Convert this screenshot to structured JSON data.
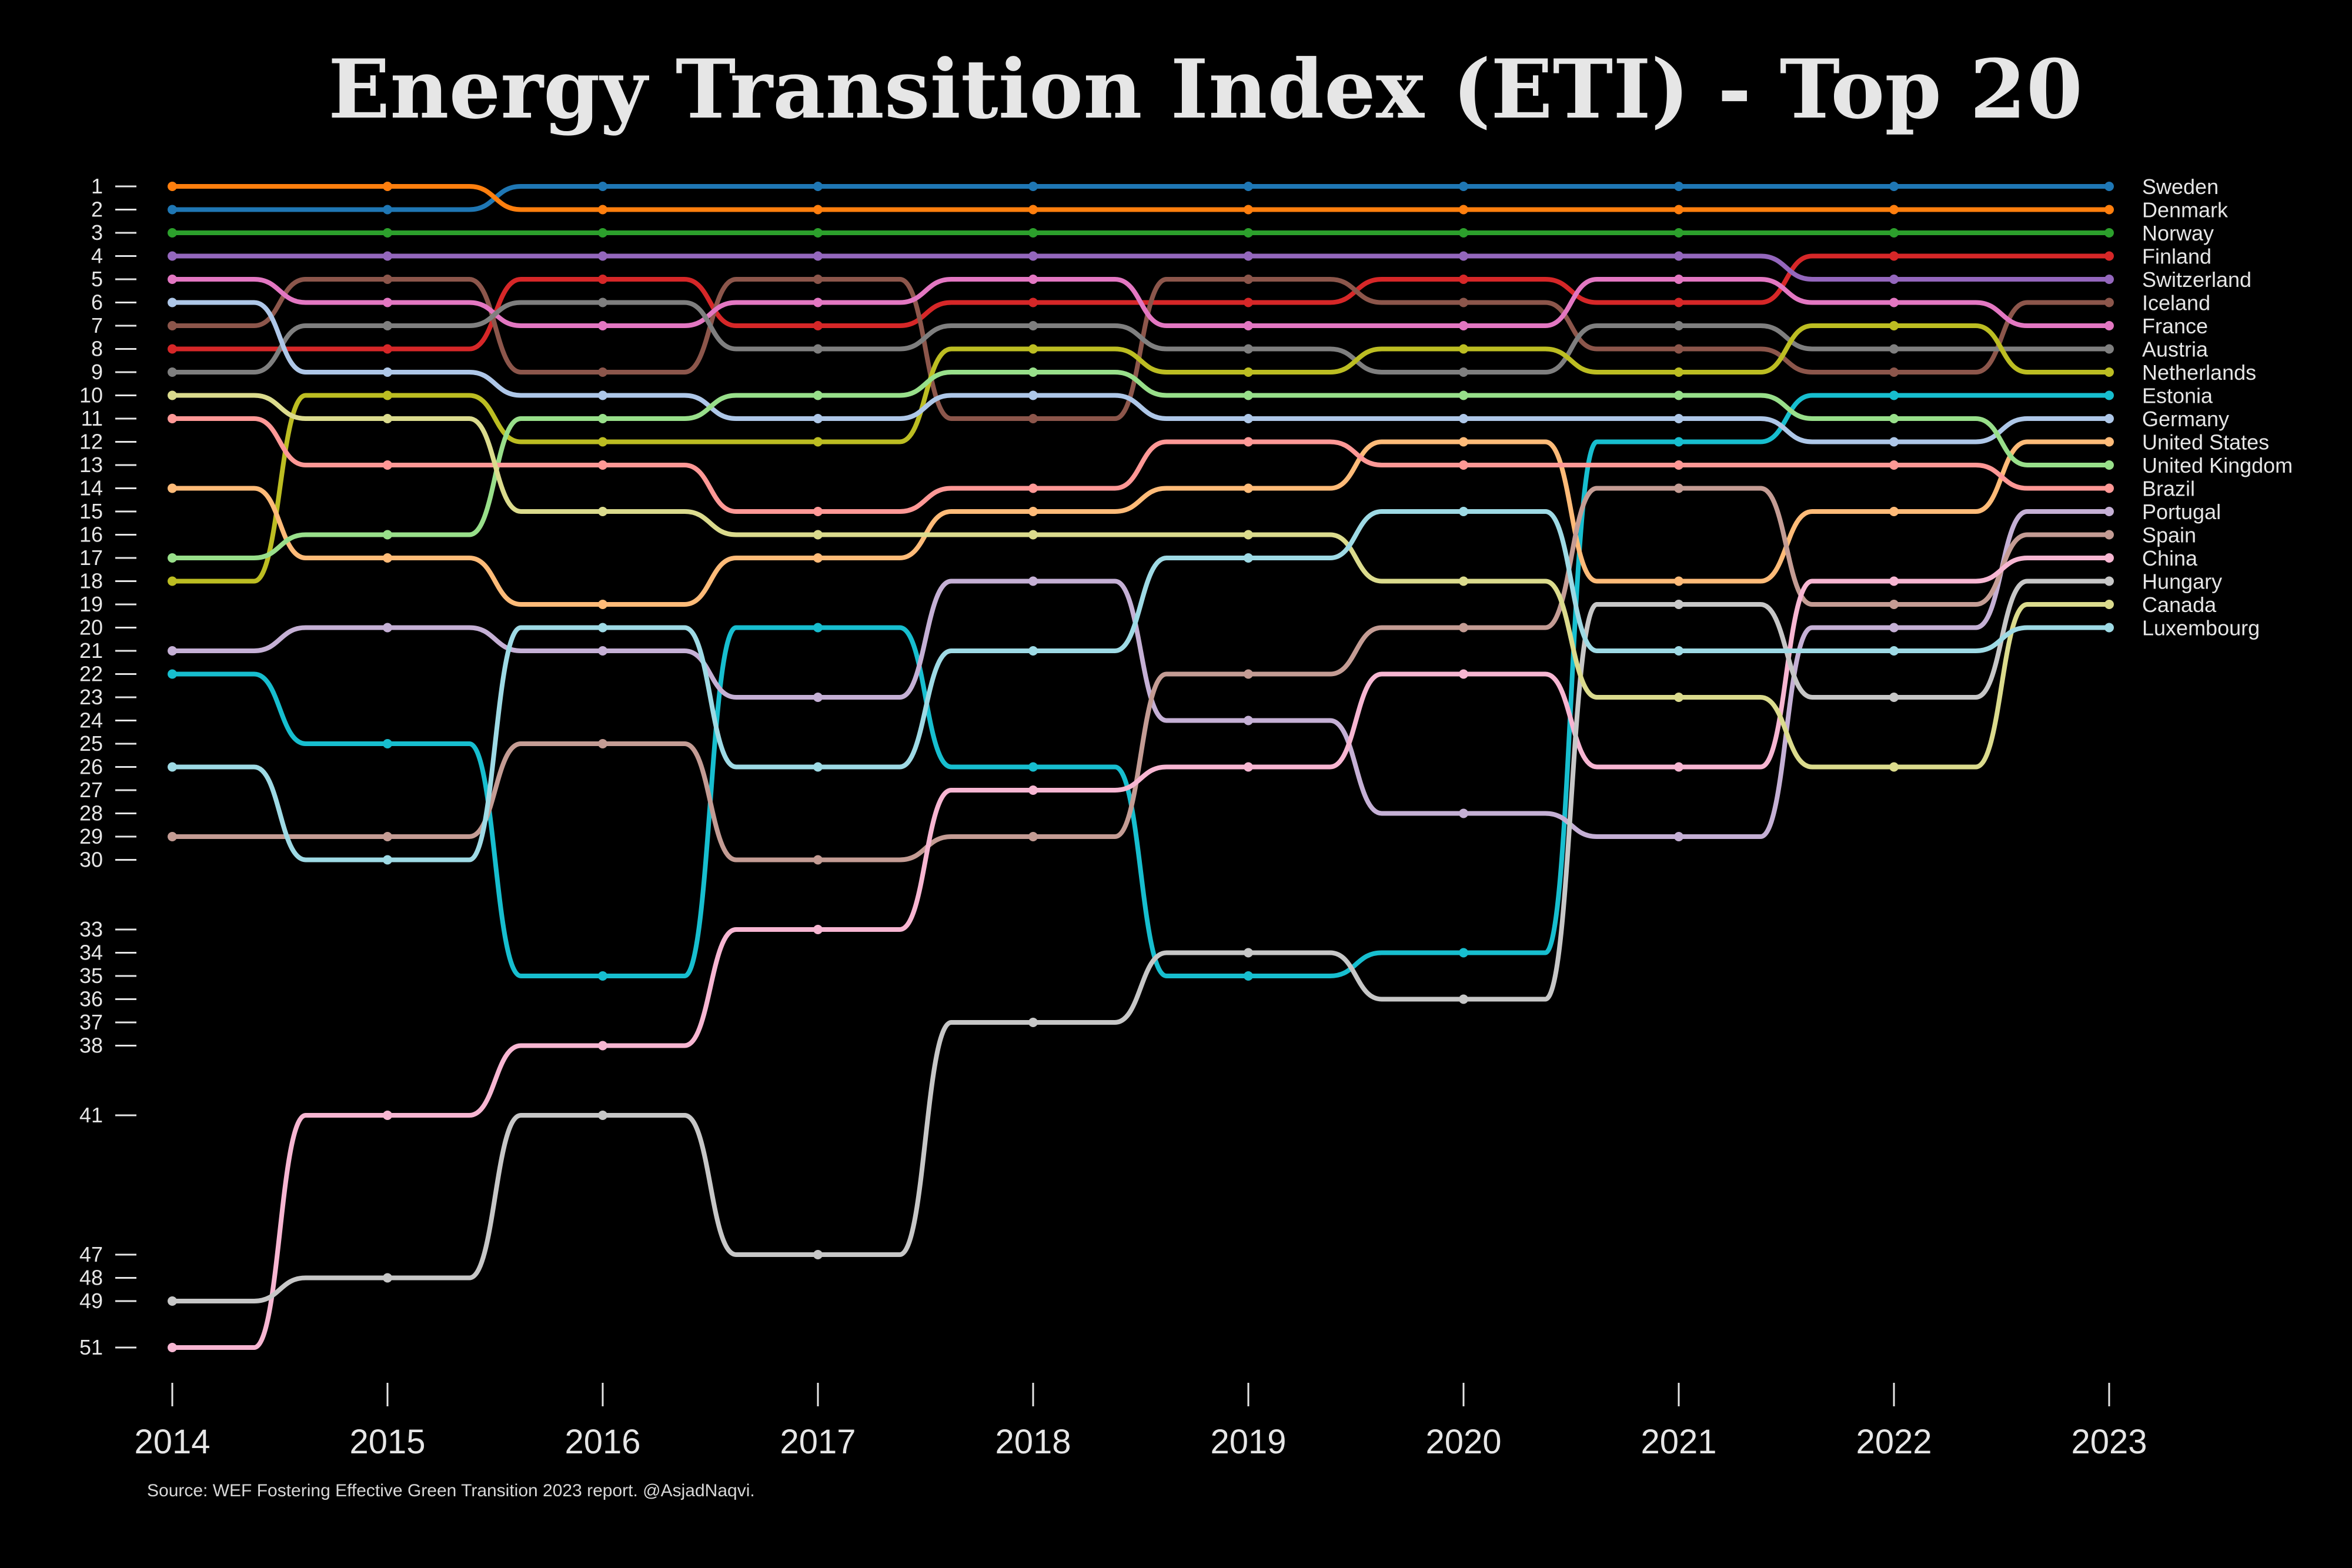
{
  "chart_data": {
    "type": "line",
    "subtype": "bump",
    "title": "Energy Transition Index (ETI) - Top 20",
    "source": "Source: WEF Fostering Effective Green Transition 2023 report. @AsjadNaqvi.",
    "x": [
      2014,
      2015,
      2016,
      2017,
      2018,
      2019,
      2020,
      2021,
      2022,
      2023
    ],
    "y_ticks": [
      1,
      2,
      3,
      4,
      5,
      6,
      7,
      8,
      9,
      10,
      11,
      12,
      13,
      14,
      15,
      16,
      17,
      18,
      19,
      20,
      21,
      22,
      23,
      24,
      25,
      26,
      27,
      28,
      29,
      30,
      33,
      34,
      35,
      36,
      37,
      38,
      41,
      47,
      48,
      49,
      51
    ],
    "y_reversed": true,
    "series": [
      {
        "name": "Sweden",
        "color": "#1f77b4",
        "values": [
          2,
          2,
          1,
          1,
          1,
          1,
          1,
          1,
          1,
          1
        ]
      },
      {
        "name": "Denmark",
        "color": "#ff7f0e",
        "values": [
          1,
          1,
          2,
          2,
          2,
          2,
          2,
          2,
          2,
          2
        ]
      },
      {
        "name": "Norway",
        "color": "#2ca02c",
        "values": [
          3,
          3,
          3,
          3,
          3,
          3,
          3,
          3,
          3,
          3
        ]
      },
      {
        "name": "Finland",
        "color": "#d62728",
        "values": [
          8,
          8,
          5,
          7,
          6,
          6,
          5,
          6,
          4,
          4
        ]
      },
      {
        "name": "Switzerland",
        "color": "#9467bd",
        "values": [
          4,
          4,
          4,
          4,
          4,
          4,
          4,
          4,
          5,
          5
        ]
      },
      {
        "name": "Iceland",
        "color": "#8c564b",
        "values": [
          7,
          5,
          9,
          5,
          11,
          5,
          6,
          8,
          9,
          6
        ]
      },
      {
        "name": "France",
        "color": "#e377c2",
        "values": [
          5,
          6,
          7,
          6,
          5,
          7,
          7,
          5,
          6,
          7
        ]
      },
      {
        "name": "Austria",
        "color": "#7f7f7f",
        "values": [
          9,
          7,
          6,
          8,
          7,
          8,
          9,
          7,
          8,
          8
        ]
      },
      {
        "name": "Netherlands",
        "color": "#bcbd22",
        "values": [
          18,
          10,
          12,
          12,
          8,
          9,
          8,
          9,
          7,
          9
        ]
      },
      {
        "name": "Estonia",
        "color": "#17becf",
        "values": [
          22,
          25,
          35,
          20,
          26,
          35,
          34,
          12,
          10,
          10
        ]
      },
      {
        "name": "Germany",
        "color": "#aec7e8",
        "values": [
          6,
          9,
          10,
          11,
          10,
          11,
          11,
          11,
          12,
          11
        ]
      },
      {
        "name": "United States",
        "color": "#ffbb78",
        "values": [
          14,
          17,
          19,
          17,
          15,
          14,
          12,
          18,
          15,
          12
        ]
      },
      {
        "name": "United Kingdom",
        "color": "#98df8a",
        "values": [
          17,
          16,
          11,
          10,
          9,
          10,
          10,
          10,
          11,
          13
        ]
      },
      {
        "name": "Brazil",
        "color": "#ff9896",
        "values": [
          11,
          13,
          13,
          15,
          14,
          12,
          13,
          13,
          13,
          14
        ]
      },
      {
        "name": "Portugal",
        "color": "#c5b0d5",
        "values": [
          21,
          20,
          21,
          23,
          18,
          24,
          28,
          29,
          20,
          15
        ]
      },
      {
        "name": "Spain",
        "color": "#c49c94",
        "values": [
          29,
          29,
          25,
          30,
          29,
          22,
          20,
          14,
          19,
          16
        ]
      },
      {
        "name": "China",
        "color": "#f7b6d2",
        "values": [
          51,
          41,
          38,
          33,
          27,
          26,
          22,
          26,
          18,
          17
        ]
      },
      {
        "name": "Hungary",
        "color": "#c7c7c7",
        "values": [
          49,
          48,
          41,
          47,
          37,
          34,
          36,
          19,
          23,
          18
        ]
      },
      {
        "name": "Canada",
        "color": "#dbdb8d",
        "values": [
          10,
          11,
          15,
          16,
          16,
          16,
          18,
          23,
          26,
          19
        ]
      },
      {
        "name": "Luxembourg",
        "color": "#9edae5",
        "values": [
          26,
          30,
          20,
          26,
          21,
          17,
          15,
          21,
          21,
          20
        ]
      }
    ]
  }
}
